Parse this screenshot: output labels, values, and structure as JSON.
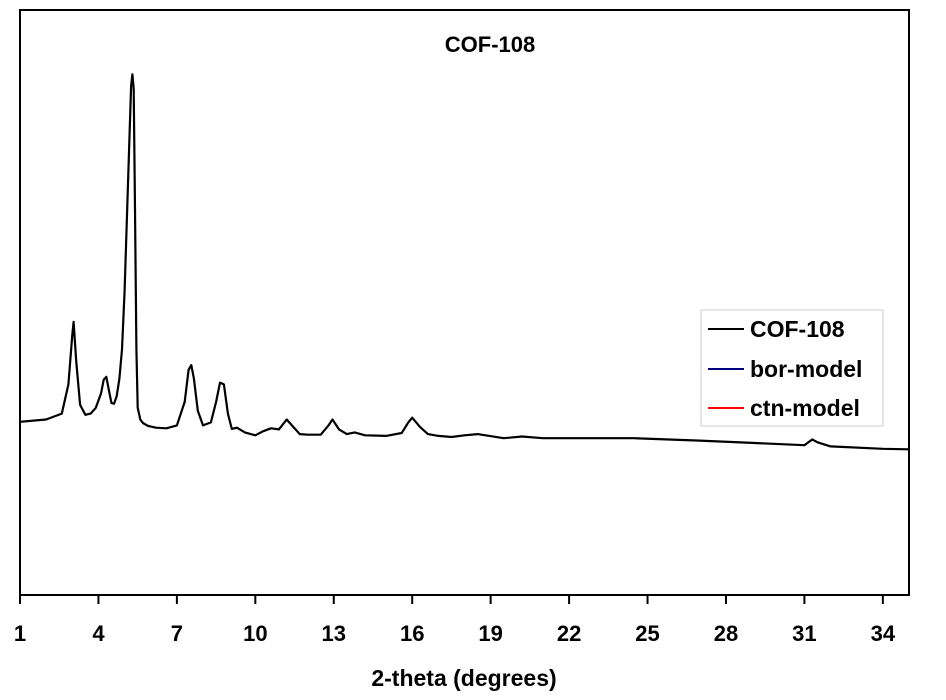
{
  "chart_data": {
    "type": "line",
    "title": "COF-108",
    "xlabel": "2-theta (degrees)",
    "ylabel": "",
    "xlim": [
      1,
      35
    ],
    "ylim": [
      0,
      100
    ],
    "x_ticks": [
      1,
      4,
      7,
      10,
      13,
      16,
      19,
      22,
      25,
      28,
      31,
      34
    ],
    "y_ticks_visible": false,
    "grid": false,
    "legend_position": "right",
    "series": [
      {
        "name": "COF-108",
        "color": "#000000",
        "x": [
          1.0,
          2.0,
          2.6,
          2.85,
          3.0,
          3.05,
          3.15,
          3.3,
          3.5,
          3.7,
          3.9,
          4.1,
          4.2,
          4.3,
          4.4,
          4.5,
          4.6,
          4.7,
          4.8,
          4.9,
          5.0,
          5.1,
          5.2,
          5.25,
          5.3,
          5.35,
          5.4,
          5.45,
          5.5,
          5.6,
          5.7,
          5.9,
          6.2,
          6.6,
          7.0,
          7.3,
          7.45,
          7.55,
          7.65,
          7.8,
          8.0,
          8.3,
          8.5,
          8.65,
          8.8,
          8.95,
          9.1,
          9.3,
          9.6,
          10.0,
          10.3,
          10.6,
          10.9,
          11.2,
          11.4,
          11.7,
          12.0,
          12.5,
          12.8,
          12.95,
          13.2,
          13.5,
          13.8,
          14.2,
          15.0,
          15.6,
          15.85,
          16.0,
          16.3,
          16.6,
          17.0,
          17.5,
          18.0,
          18.5,
          19.5,
          20.2,
          21.0,
          23.0,
          24.5,
          27.0,
          29.0,
          31.0,
          31.3,
          31.5,
          32.0,
          34.0,
          35.0
        ],
        "values": [
          29.6,
          30.0,
          31.0,
          36.0,
          44.5,
          46.7,
          40.0,
          32.5,
          30.8,
          31.0,
          32.0,
          34.5,
          36.8,
          37.3,
          35.0,
          32.8,
          32.7,
          34.0,
          37.0,
          42.0,
          52.0,
          66.0,
          80.0,
          87.0,
          89.0,
          86.5,
          66.0,
          42.0,
          32.0,
          30.0,
          29.4,
          28.9,
          28.6,
          28.5,
          29.0,
          33.0,
          38.5,
          39.3,
          37.0,
          31.5,
          29.0,
          29.5,
          33.0,
          36.3,
          36.0,
          31.0,
          28.4,
          28.6,
          27.8,
          27.3,
          28.0,
          28.5,
          28.3,
          30.0,
          29.0,
          27.5,
          27.4,
          27.4,
          29.0,
          30.0,
          28.3,
          27.5,
          27.8,
          27.3,
          27.2,
          27.7,
          29.5,
          30.3,
          28.7,
          27.5,
          27.2,
          27.0,
          27.3,
          27.5,
          26.8,
          27.1,
          26.8,
          26.8,
          26.8,
          26.4,
          26.0,
          25.6,
          26.6,
          26.1,
          25.4,
          25.0,
          24.9
        ]
      },
      {
        "name": "bor-model",
        "color": "#000080",
        "x": [],
        "values": []
      },
      {
        "name": "ctn-model",
        "color": "#ff0000",
        "x": [],
        "values": []
      }
    ]
  }
}
